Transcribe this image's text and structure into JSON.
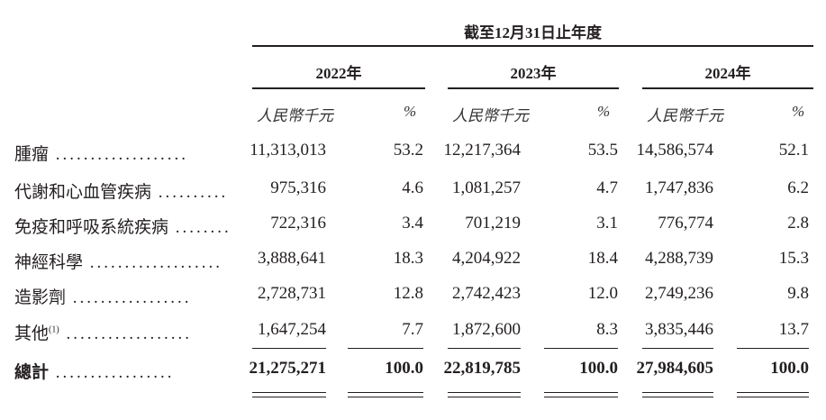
{
  "header": {
    "title": "截至12月31日止年度",
    "years": [
      "2022年",
      "2023年",
      "2024年"
    ],
    "unit": "人民幣千元",
    "percent": "%"
  },
  "rows": [
    {
      "label": "腫瘤",
      "note": "",
      "values": [
        "11,313,013",
        "53.2",
        "12,217,364",
        "53.5",
        "14,586,574",
        "52.1"
      ]
    },
    {
      "label": "代謝和心血管疾病",
      "note": "",
      "values": [
        "975,316",
        "4.6",
        "1,081,257",
        "4.7",
        "1,747,836",
        "6.2"
      ]
    },
    {
      "label": "免疫和呼吸系統疾病",
      "note": "",
      "values": [
        "722,316",
        "3.4",
        "701,219",
        "3.1",
        "776,774",
        "2.8"
      ]
    },
    {
      "label": "神經科學",
      "note": "",
      "values": [
        "3,888,641",
        "18.3",
        "4,204,922",
        "18.4",
        "4,288,739",
        "15.3"
      ]
    },
    {
      "label": "造影劑",
      "note": "",
      "values": [
        "2,728,731",
        "12.8",
        "2,742,423",
        "12.0",
        "2,749,236",
        "9.8"
      ]
    },
    {
      "label": "其他",
      "note": "(1)",
      "values": [
        "1,647,254",
        "7.7",
        "1,872,600",
        "8.3",
        "3,835,446",
        "13.7"
      ]
    }
  ],
  "total": {
    "label": "總計",
    "values": [
      "21,275,271",
      "100.0",
      "22,819,785",
      "100.0",
      "27,984,605",
      "100.0"
    ]
  }
}
